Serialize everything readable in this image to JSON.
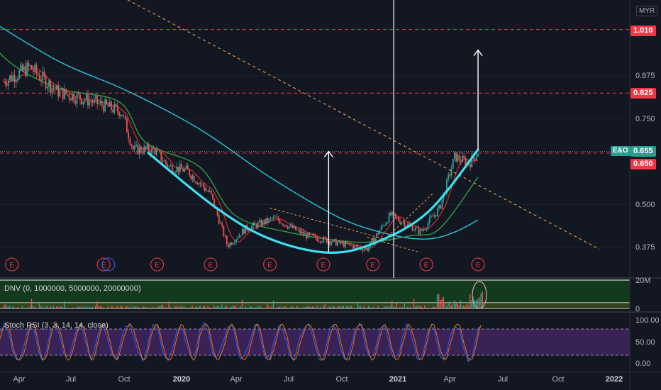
{
  "currency": "MYR",
  "price_axis": {
    "ticks": [
      "0.875",
      "0.750",
      "0.500",
      "0.375"
    ],
    "tags": [
      {
        "value": "1.010",
        "color": "#f23645"
      },
      {
        "value": "0.825",
        "color": "#f23645"
      },
      {
        "value": "0.655",
        "color": "#2a9d8f"
      },
      {
        "value": "0.650",
        "color": "#f23645"
      }
    ],
    "ticker": "E&O"
  },
  "volume": {
    "title": "DNV (0, 1000000, 5000000, 20000000)",
    "ticks": [
      "20M",
      "0"
    ]
  },
  "rsi": {
    "title": "Stoch RSI (3, 3, 14, 14, close)",
    "ticks": [
      "100.00",
      "50.00",
      "0.00"
    ]
  },
  "time_axis": [
    {
      "label": "Apr",
      "bold": false
    },
    {
      "label": "Jul",
      "bold": false
    },
    {
      "label": "Oct",
      "bold": false
    },
    {
      "label": "2020",
      "bold": true
    },
    {
      "label": "Apr",
      "bold": false
    },
    {
      "label": "Jul",
      "bold": false
    },
    {
      "label": "Oct",
      "bold": false
    },
    {
      "label": "2021",
      "bold": true
    },
    {
      "label": "Apr",
      "bold": false
    },
    {
      "label": "Jul",
      "bold": false
    },
    {
      "label": "Oct",
      "bold": false
    },
    {
      "label": "2022",
      "bold": true
    }
  ],
  "earnings_marker": "E",
  "chart_data": {
    "type": "candlestick",
    "symbol": "E&O",
    "currency": "MYR",
    "y_ticks": [
      0.375,
      0.5,
      0.75,
      0.875
    ],
    "horizontal_levels": [
      1.01,
      0.825,
      0.65
    ],
    "last_price": 0.655,
    "close_path": [
      {
        "t": "2019-03-01",
        "v": 0.86
      },
      {
        "t": "2019-04-15",
        "v": 0.9
      },
      {
        "t": "2019-06-01",
        "v": 0.83
      },
      {
        "t": "2019-08-01",
        "v": 0.8
      },
      {
        "t": "2019-09-20",
        "v": 0.77
      },
      {
        "t": "2019-10-10",
        "v": 0.66
      },
      {
        "t": "2019-11-15",
        "v": 0.66
      },
      {
        "t": "2019-12-10",
        "v": 0.61
      },
      {
        "t": "2020-01-10",
        "v": 0.6
      },
      {
        "t": "2020-02-20",
        "v": 0.53
      },
      {
        "t": "2020-03-20",
        "v": 0.38
      },
      {
        "t": "2020-04-20",
        "v": 0.43
      },
      {
        "t": "2020-06-10",
        "v": 0.46
      },
      {
        "t": "2020-08-01",
        "v": 0.41
      },
      {
        "t": "2020-09-20",
        "v": 0.39
      },
      {
        "t": "2020-11-15",
        "v": 0.37
      },
      {
        "t": "2020-12-25",
        "v": 0.47
      },
      {
        "t": "2021-02-15",
        "v": 0.42
      },
      {
        "t": "2021-03-20",
        "v": 0.49
      },
      {
        "t": "2021-04-15",
        "v": 0.64
      },
      {
        "t": "2021-05-10",
        "v": 0.62
      },
      {
        "t": "2021-05-25",
        "v": 0.655
      }
    ],
    "ma_long": [
      {
        "t": "2019-01-15",
        "v": 1.06
      },
      {
        "t": "2019-06-01",
        "v": 0.92
      },
      {
        "t": "2019-10-01",
        "v": 0.83
      },
      {
        "t": "2020-02-01",
        "v": 0.72
      },
      {
        "t": "2020-06-01",
        "v": 0.58
      },
      {
        "t": "2020-10-01",
        "v": 0.46
      },
      {
        "t": "2021-01-01",
        "v": 0.41
      },
      {
        "t": "2021-03-01",
        "v": 0.4
      },
      {
        "t": "2021-04-15",
        "v": 0.42
      },
      {
        "t": "2021-05-25",
        "v": 0.455
      }
    ],
    "ma_mid": [
      {
        "t": "2019-01-01",
        "v": 1.08
      },
      {
        "t": "2019-03-01",
        "v": 0.93
      },
      {
        "t": "2019-06-01",
        "v": 0.84
      },
      {
        "t": "2019-09-15",
        "v": 0.8
      },
      {
        "t": "2019-11-01",
        "v": 0.68
      },
      {
        "t": "2020-02-01",
        "v": 0.61
      },
      {
        "t": "2020-04-01",
        "v": 0.47
      },
      {
        "t": "2020-07-01",
        "v": 0.42
      },
      {
        "t": "2020-11-01",
        "v": 0.39
      },
      {
        "t": "2021-02-01",
        "v": 0.41
      },
      {
        "t": "2021-03-20",
        "v": 0.43
      },
      {
        "t": "2021-05-25",
        "v": 0.58
      }
    ],
    "rounding_bottom_curve": [
      {
        "t": "2019-11-05",
        "v": 0.65
      },
      {
        "t": "2020-03-01",
        "v": 0.49
      },
      {
        "t": "2020-06-01",
        "v": 0.4
      },
      {
        "t": "2020-09-10",
        "v": 0.36
      },
      {
        "t": "2020-12-01",
        "v": 0.39
      },
      {
        "t": "2021-03-01",
        "v": 0.48
      },
      {
        "t": "2021-05-25",
        "v": 0.66
      }
    ],
    "trendline_dashed": [
      {
        "t": "2019-05-15",
        "v": 1.22
      },
      {
        "t": "2021-12-20",
        "v": 0.37
      }
    ],
    "arrows": [
      {
        "t": "2020-09-10",
        "from": 0.36,
        "to": 0.655
      },
      {
        "t": "2021-05-25",
        "from": 0.66,
        "to": 0.95
      }
    ],
    "vertical_line_date": "2020-12-31",
    "earnings_dates": [
      "2019-03-15",
      "2019-08-20",
      "2019-08-28",
      "2019-11-20",
      "2020-02-20",
      "2020-06-01",
      "2020-09-01",
      "2020-11-25",
      "2021-02-25",
      "2021-05-25"
    ]
  }
}
